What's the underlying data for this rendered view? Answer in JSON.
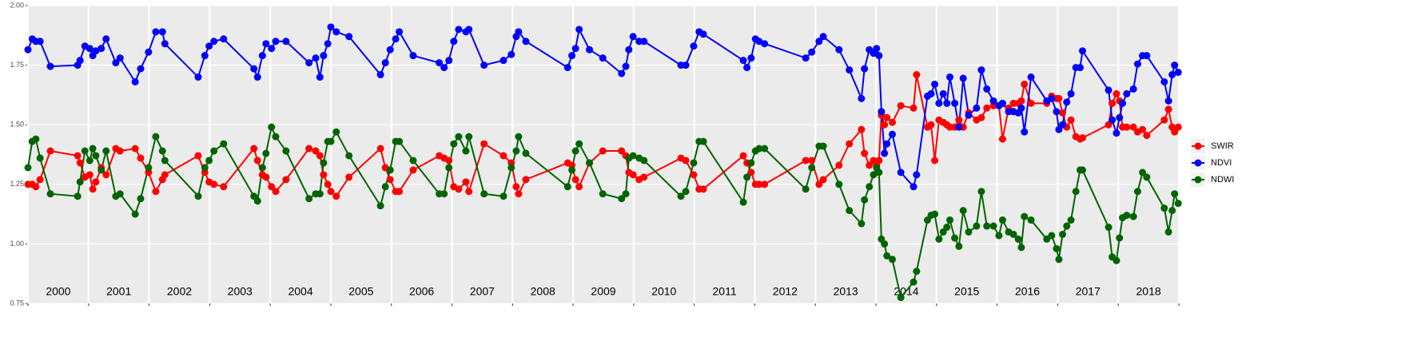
{
  "chart_data": {
    "type": "line",
    "x": [
      2000.0,
      2000.07,
      2000.13,
      2000.2,
      2000.37,
      2000.82,
      2000.86,
      2000.94,
      2001.02,
      2001.07,
      2001.12,
      2001.21,
      2001.29,
      2001.45,
      2001.52,
      2001.77,
      2001.86,
      2001.99,
      2002.11,
      2002.22,
      2002.26,
      2002.81,
      2002.92,
      2002.99,
      2003.07,
      2003.23,
      2003.73,
      2003.79,
      2003.87,
      2003.93,
      2004.02,
      2004.09,
      2004.26,
      2004.64,
      2004.75,
      2004.82,
      2004.88,
      2004.95,
      2005.0,
      2005.09,
      2005.3,
      2005.82,
      2005.9,
      2005.98,
      2006.07,
      2006.13,
      2006.36,
      2006.79,
      2006.87,
      2006.95,
      2007.03,
      2007.11,
      2007.23,
      2007.28,
      2007.53,
      2007.85,
      2007.98,
      2008.06,
      2008.1,
      2008.22,
      2008.91,
      2008.98,
      2009.04,
      2009.1,
      2009.27,
      2009.49,
      2009.8,
      2009.87,
      2009.92,
      2009.99,
      2010.09,
      2010.17,
      2010.78,
      2010.86,
      2010.99,
      2011.08,
      2011.15,
      2011.81,
      2011.87,
      2011.94,
      2012.01,
      2012.07,
      2012.16,
      2012.84,
      2012.94,
      2013.06,
      2013.13,
      2013.39,
      2013.56,
      2013.76,
      2013.81,
      2013.89,
      2013.96,
      2014.01,
      2014.05,
      2014.09,
      2014.14,
      2014.18,
      2014.27,
      2014.41,
      2014.62,
      2014.67,
      2014.85,
      2014.91,
      2014.97,
      2015.04,
      2015.11,
      2015.17,
      2015.22,
      2015.3,
      2015.37,
      2015.44,
      2015.53,
      2015.66,
      2015.74,
      2015.83,
      2015.94,
      2016.03,
      2016.09,
      2016.19,
      2016.27,
      2016.35,
      2016.4,
      2016.45,
      2016.56,
      2016.82,
      2016.9,
      2016.98,
      2017.02,
      2017.08,
      2017.15,
      2017.22,
      2017.3,
      2017.37,
      2017.41,
      2017.84,
      2017.9,
      2017.97,
      2018.02,
      2018.07,
      2018.14,
      2018.25,
      2018.32,
      2018.4,
      2018.47,
      2018.76,
      2018.83,
      2018.89,
      2018.93,
      2018.99
    ],
    "series": [
      {
        "name": "SWIR",
        "color": "#ff0000",
        "values": [
          1.25,
          1.25,
          1.24,
          1.27,
          1.39,
          1.37,
          1.34,
          1.28,
          1.29,
          1.23,
          1.26,
          1.32,
          1.29,
          1.4,
          1.39,
          1.4,
          1.36,
          1.3,
          1.22,
          1.27,
          1.29,
          1.37,
          1.3,
          1.26,
          1.25,
          1.24,
          1.4,
          1.35,
          1.29,
          1.28,
          1.24,
          1.22,
          1.27,
          1.4,
          1.39,
          1.37,
          1.29,
          1.25,
          1.22,
          1.2,
          1.28,
          1.4,
          1.32,
          1.27,
          1.22,
          1.22,
          1.31,
          1.37,
          1.36,
          1.35,
          1.24,
          1.23,
          1.26,
          1.22,
          1.42,
          1.37,
          1.34,
          1.24,
          1.21,
          1.27,
          1.34,
          1.33,
          1.27,
          1.24,
          1.34,
          1.39,
          1.39,
          1.37,
          1.3,
          1.29,
          1.27,
          1.28,
          1.36,
          1.35,
          1.29,
          1.23,
          1.23,
          1.37,
          1.34,
          1.3,
          1.25,
          1.25,
          1.25,
          1.35,
          1.35,
          1.25,
          1.27,
          1.33,
          1.42,
          1.48,
          1.38,
          1.33,
          1.35,
          1.33,
          1.35,
          1.54,
          1.5,
          1.53,
          1.51,
          1.58,
          1.57,
          1.71,
          1.49,
          1.5,
          1.35,
          1.52,
          1.51,
          1.5,
          1.49,
          1.49,
          1.52,
          1.49,
          1.55,
          1.52,
          1.53,
          1.57,
          1.58,
          1.58,
          1.44,
          1.57,
          1.59,
          1.59,
          1.6,
          1.67,
          1.59,
          1.59,
          1.62,
          1.61,
          1.61,
          1.55,
          1.49,
          1.52,
          1.45,
          1.44,
          1.445,
          1.5,
          1.59,
          1.63,
          1.6,
          1.49,
          1.49,
          1.49,
          1.47,
          1.48,
          1.455,
          1.52,
          1.565,
          1.49,
          1.47,
          1.49
        ]
      },
      {
        "name": "NDVI",
        "color": "#0000ff",
        "values": [
          1.815,
          1.86,
          1.85,
          1.85,
          1.745,
          1.75,
          1.77,
          1.83,
          1.82,
          1.79,
          1.81,
          1.82,
          1.86,
          1.76,
          1.78,
          1.68,
          1.735,
          1.805,
          1.89,
          1.89,
          1.84,
          1.7,
          1.79,
          1.83,
          1.85,
          1.86,
          1.735,
          1.7,
          1.79,
          1.84,
          1.82,
          1.85,
          1.85,
          1.76,
          1.78,
          1.7,
          1.79,
          1.84,
          1.91,
          1.89,
          1.87,
          1.71,
          1.76,
          1.815,
          1.86,
          1.89,
          1.79,
          1.76,
          1.74,
          1.77,
          1.85,
          1.9,
          1.89,
          1.9,
          1.75,
          1.77,
          1.795,
          1.87,
          1.89,
          1.85,
          1.74,
          1.79,
          1.82,
          1.9,
          1.815,
          1.78,
          1.715,
          1.745,
          1.815,
          1.87,
          1.85,
          1.85,
          1.75,
          1.75,
          1.83,
          1.89,
          1.88,
          1.77,
          1.74,
          1.78,
          1.86,
          1.85,
          1.84,
          1.78,
          1.805,
          1.85,
          1.87,
          1.815,
          1.73,
          1.61,
          1.735,
          1.815,
          1.8,
          1.82,
          1.79,
          1.555,
          1.38,
          1.42,
          1.46,
          1.3,
          1.24,
          1.29,
          1.62,
          1.63,
          1.67,
          1.59,
          1.63,
          1.59,
          1.7,
          1.59,
          1.49,
          1.695,
          1.54,
          1.57,
          1.73,
          1.65,
          1.6,
          1.58,
          1.59,
          1.555,
          1.555,
          1.55,
          1.57,
          1.47,
          1.7,
          1.6,
          1.61,
          1.555,
          1.48,
          1.5,
          1.595,
          1.63,
          1.74,
          1.74,
          1.81,
          1.645,
          1.52,
          1.465,
          1.53,
          1.59,
          1.63,
          1.65,
          1.755,
          1.79,
          1.79,
          1.68,
          1.6,
          1.71,
          1.75,
          1.72
        ]
      },
      {
        "name": "NDWI",
        "color": "#006400",
        "values": [
          1.32,
          1.43,
          1.44,
          1.36,
          1.21,
          1.2,
          1.26,
          1.39,
          1.35,
          1.4,
          1.37,
          1.31,
          1.39,
          1.2,
          1.21,
          1.125,
          1.19,
          1.32,
          1.45,
          1.39,
          1.35,
          1.2,
          1.32,
          1.35,
          1.39,
          1.42,
          1.2,
          1.18,
          1.32,
          1.38,
          1.49,
          1.45,
          1.39,
          1.19,
          1.21,
          1.21,
          1.34,
          1.43,
          1.43,
          1.47,
          1.37,
          1.16,
          1.24,
          1.31,
          1.43,
          1.43,
          1.35,
          1.21,
          1.21,
          1.32,
          1.42,
          1.45,
          1.39,
          1.45,
          1.21,
          1.2,
          1.32,
          1.39,
          1.45,
          1.38,
          1.24,
          1.31,
          1.39,
          1.42,
          1.34,
          1.21,
          1.19,
          1.21,
          1.36,
          1.37,
          1.36,
          1.35,
          1.2,
          1.22,
          1.34,
          1.43,
          1.43,
          1.175,
          1.28,
          1.34,
          1.39,
          1.4,
          1.4,
          1.23,
          1.32,
          1.41,
          1.41,
          1.25,
          1.14,
          1.085,
          1.185,
          1.24,
          1.29,
          1.32,
          1.3,
          1.02,
          1.0,
          0.95,
          0.935,
          0.775,
          0.84,
          0.885,
          1.1,
          1.12,
          1.125,
          1.02,
          1.05,
          1.07,
          1.1,
          1.025,
          0.99,
          1.14,
          1.05,
          1.075,
          1.22,
          1.075,
          1.075,
          1.035,
          1.1,
          1.05,
          1.04,
          1.02,
          0.985,
          1.115,
          1.1,
          1.02,
          1.035,
          0.98,
          0.935,
          1.04,
          1.075,
          1.1,
          1.22,
          1.31,
          1.31,
          1.07,
          0.945,
          0.93,
          1.025,
          1.11,
          1.12,
          1.115,
          1.22,
          1.3,
          1.28,
          1.15,
          1.05,
          1.14,
          1.21,
          1.17
        ]
      }
    ],
    "xlim": [
      2000,
      2019
    ],
    "xticks": [
      2000,
      2001,
      2002,
      2003,
      2004,
      2005,
      2006,
      2007,
      2008,
      2009,
      2010,
      2011,
      2012,
      2013,
      2014,
      2015,
      2016,
      2017,
      2018,
      2019
    ],
    "year_labels": [
      {
        "x": 2000.5,
        "label": "2000"
      },
      {
        "x": 2001.5,
        "label": "2001"
      },
      {
        "x": 2002.5,
        "label": "2002"
      },
      {
        "x": 2003.5,
        "label": "2003"
      },
      {
        "x": 2004.5,
        "label": "2004"
      },
      {
        "x": 2005.5,
        "label": "2005"
      },
      {
        "x": 2006.5,
        "label": "2006"
      },
      {
        "x": 2007.5,
        "label": "2007"
      },
      {
        "x": 2008.5,
        "label": "2008"
      },
      {
        "x": 2009.5,
        "label": "2009"
      },
      {
        "x": 2010.5,
        "label": "2010"
      },
      {
        "x": 2011.5,
        "label": "2011"
      },
      {
        "x": 2012.5,
        "label": "2012"
      },
      {
        "x": 2013.5,
        "label": "2013"
      },
      {
        "x": 2014.5,
        "label": "2014"
      },
      {
        "x": 2015.5,
        "label": "2015"
      },
      {
        "x": 2016.5,
        "label": "2016"
      },
      {
        "x": 2017.5,
        "label": "2017"
      },
      {
        "x": 2018.5,
        "label": "2018"
      }
    ],
    "ylim": [
      0.75,
      2.0
    ],
    "yticks": [
      0.75,
      {
        "value": 1.0,
        "label": "1.00"
      },
      1.25,
      {
        "value": 1.5,
        "label": "1.50"
      },
      1.75,
      {
        "value": 2.0,
        "label": "2.00"
      }
    ],
    "grid": true,
    "legend": "right"
  }
}
